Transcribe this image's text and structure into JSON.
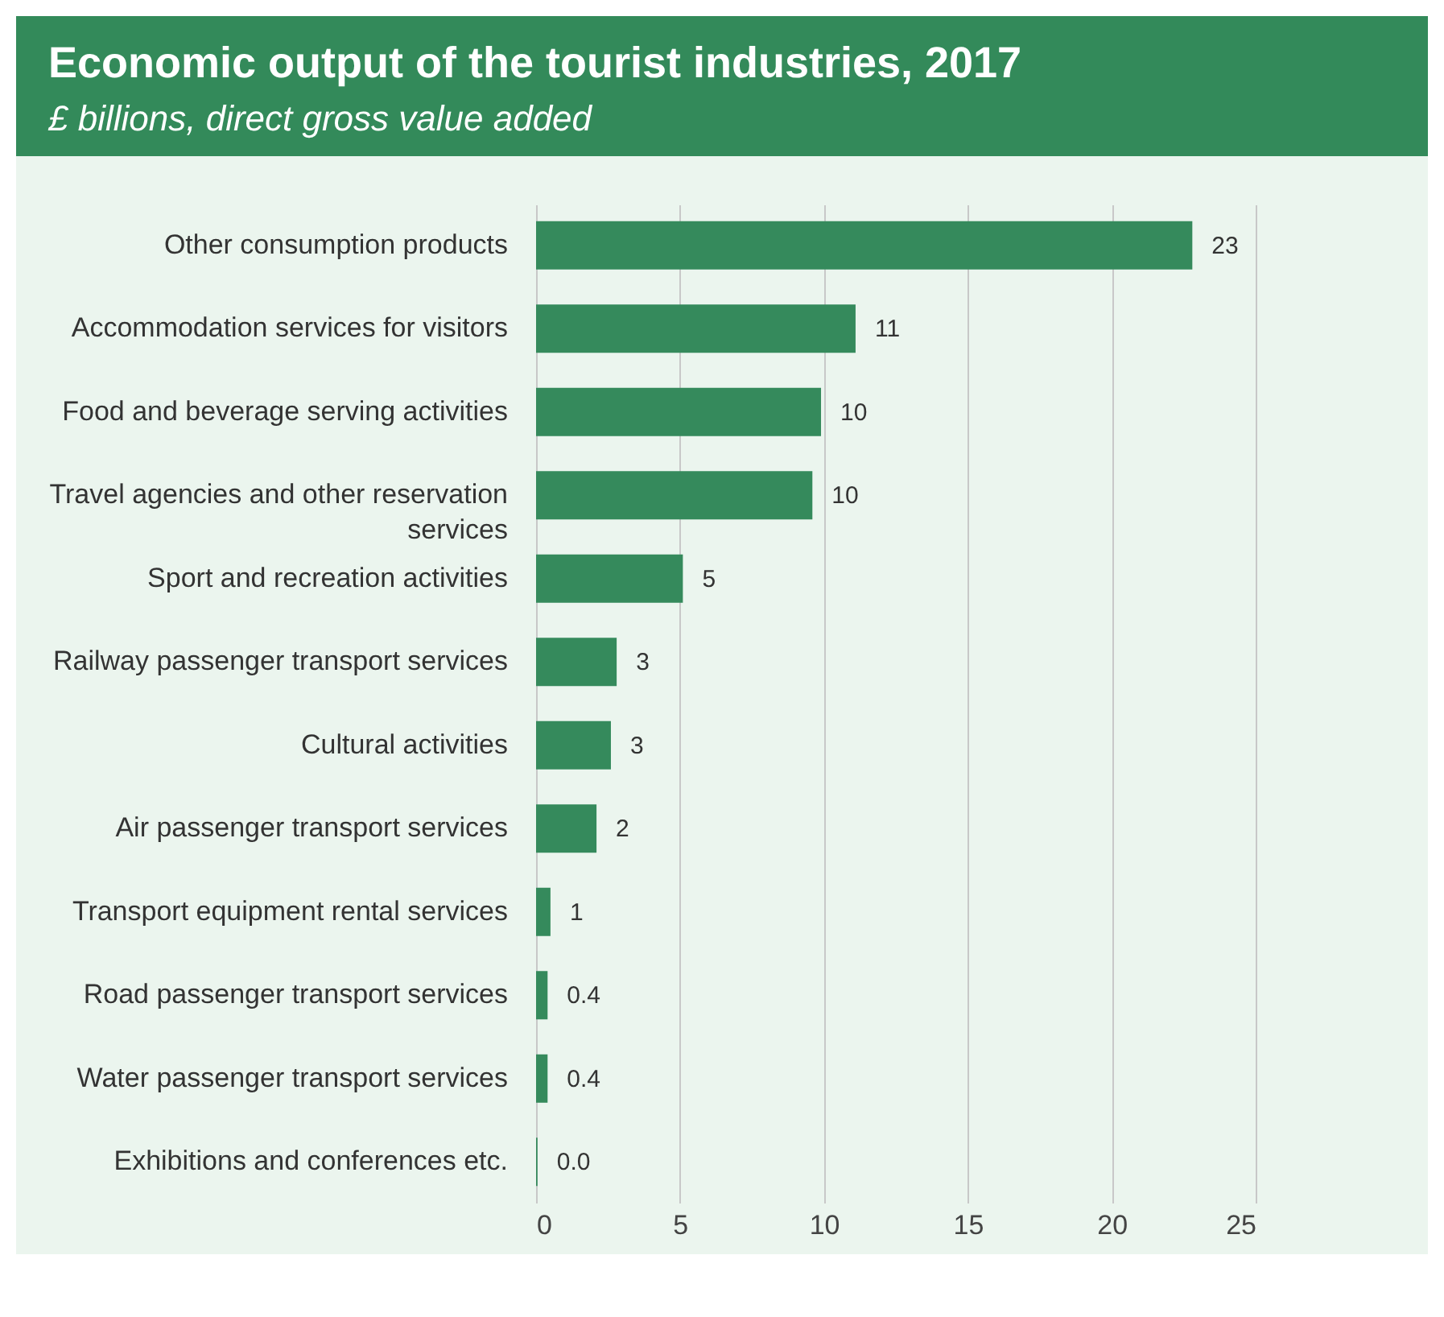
{
  "chart_data": {
    "type": "bar",
    "orientation": "horizontal",
    "title": "Economic output of the tourist industries, 2017",
    "subtitle": "£ billions, direct gross value added",
    "categories": [
      "Other consumption products",
      "Accommodation services for visitors",
      "Food and beverage serving activities",
      "Travel agencies and other reservation services",
      "Sport and recreation activities",
      "Railway passenger transport services",
      "Cultural activities",
      "Air passenger transport services",
      "Transport equipment rental services",
      "Road passenger transport services",
      "Water passenger transport services",
      "Exhibitions and conferences etc."
    ],
    "values": [
      22.8,
      11.1,
      9.9,
      9.6,
      5.1,
      2.8,
      2.6,
      2.1,
      0.5,
      0.4,
      0.4,
      0.05
    ],
    "value_labels": [
      "23",
      "11",
      "10",
      "10",
      "5",
      "3",
      "3",
      "2",
      "1",
      "0.4",
      "0.4",
      "0.0"
    ],
    "color": "#358a5c",
    "xlim": [
      0,
      25
    ],
    "xticks": [
      0,
      5,
      10,
      15,
      20,
      25
    ],
    "grid": "x"
  }
}
